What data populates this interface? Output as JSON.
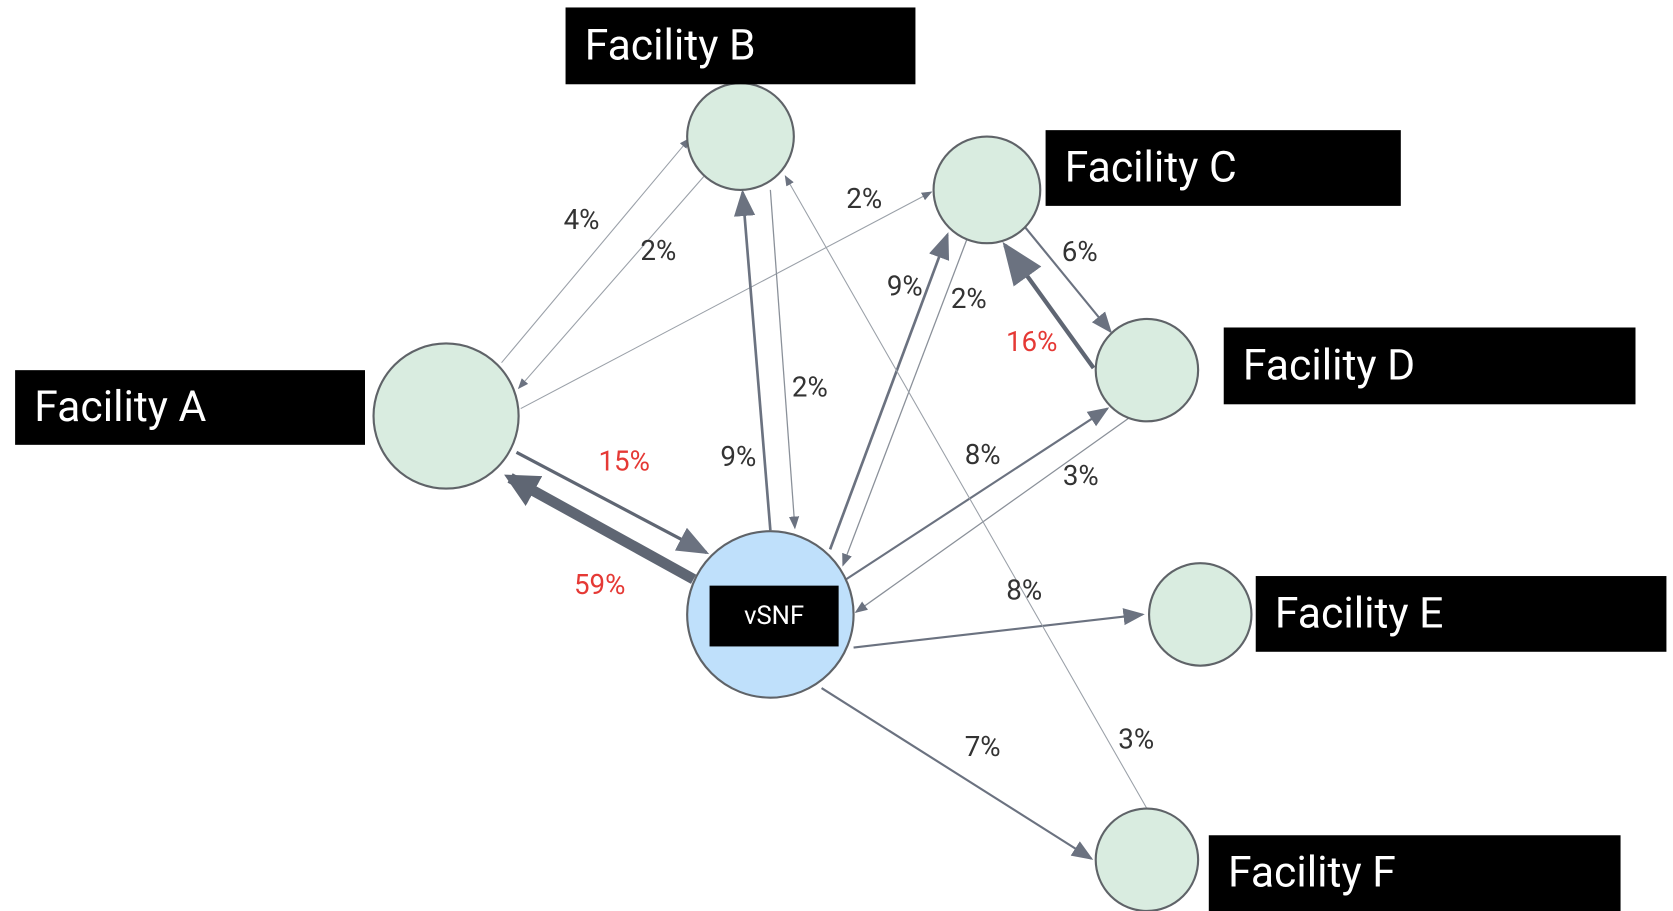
{
  "nodes": [
    {
      "label": "Facility A"
    },
    {
      "label": "Facility B"
    },
    {
      "label": "Facility C"
    },
    {
      "label": "Facility D"
    },
    {
      "label": "Facility E"
    },
    {
      "label": "Facility F"
    },
    {
      "label": "vSNF"
    }
  ],
  "edges": [
    {
      "label": "4%"
    },
    {
      "label": "2%"
    },
    {
      "label": "2%"
    },
    {
      "label": "15%"
    },
    {
      "label": "59%"
    },
    {
      "label": "9%"
    },
    {
      "label": "2%"
    },
    {
      "label": "9%"
    },
    {
      "label": "2%"
    },
    {
      "label": "6%"
    },
    {
      "label": "16%"
    },
    {
      "label": "8%"
    },
    {
      "label": "3%"
    },
    {
      "label": "8%"
    },
    {
      "label": "3%"
    },
    {
      "label": "7%"
    }
  ]
}
